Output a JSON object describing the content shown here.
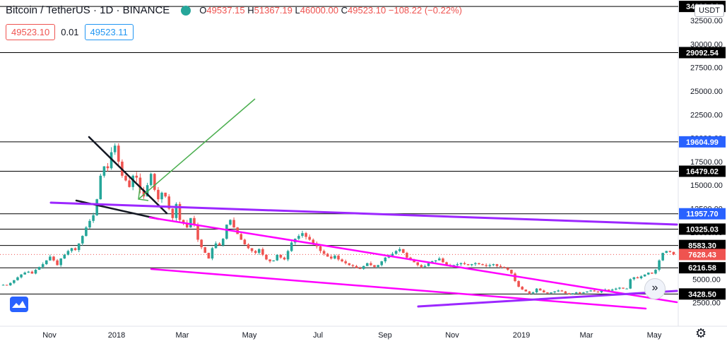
{
  "header": {
    "symbol": "Bitcoin / TetherUS · 1D · BINANCE",
    "ohlc": [
      {
        "k": "O",
        "v": "49537.15"
      },
      {
        "k": "H",
        "v": "51367.19"
      },
      {
        "k": "L",
        "v": "46000.00"
      },
      {
        "k": "C",
        "v": "49523.10"
      }
    ],
    "change": "−108.22 (−0.22%)"
  },
  "trade": {
    "sell": "49523.10",
    "spread": "0.01",
    "buy": "49523.11"
  },
  "currency": "USDT",
  "colors": {
    "up": "#26a69a",
    "down": "#ef5350",
    "magenta": "#ff00ff",
    "purple": "#9c27ff",
    "green": "#4caf50",
    "black": "#131722",
    "blue_label": "#2962ff"
  },
  "chart_data": {
    "type": "candlestick",
    "y_ticks": [
      "2500.00",
      "5000.00",
      "7500.00",
      "10000.00",
      "12500.00",
      "15000.00",
      "17500.00",
      "20000.00",
      "22500.00",
      "25000.00",
      "27500.00",
      "30000.00",
      "32500.00"
    ],
    "x_ticks": [
      "Nov",
      "2018",
      "Mar",
      "May",
      "Jul",
      "Sep",
      "Nov",
      "2019",
      "Mar",
      "May"
    ],
    "ylim": [
      0,
      35000
    ],
    "horizontal_levels": [
      {
        "value": 34000,
        "label": "34000.04"
      },
      {
        "value": 29092.54,
        "label": "29092.54"
      },
      {
        "value": 19604.99,
        "label": "19604.99",
        "highlight": true
      },
      {
        "value": 16479.02,
        "label": "16479.02"
      },
      {
        "value": 11957.7,
        "label": "11957.70",
        "highlight": true
      },
      {
        "value": 10325.03,
        "label": "10325.03"
      },
      {
        "value": 8583.3,
        "label": "8583.30"
      },
      {
        "value": 6216.58,
        "label": "6216.58"
      },
      {
        "value": 3428.5,
        "label": "3428.50"
      }
    ],
    "current_price": {
      "value": 7628.43,
      "label": "7628.43"
    },
    "closes": [
      4400,
      4350,
      4600,
      4900,
      5200,
      5500,
      5700,
      5800,
      5600,
      6000,
      6300,
      6600,
      7000,
      7400,
      7000,
      6500,
      7200,
      7600,
      8000,
      8300,
      8100,
      8800,
      9600,
      10500,
      11200,
      11800,
      13500,
      16000,
      17000,
      16800,
      18500,
      19200,
      17500,
      16000,
      15500,
      14800,
      16000,
      15800,
      14500,
      13800,
      15000,
      16200,
      14500,
      13500,
      14200,
      13800,
      12500,
      11500,
      13000,
      11300,
      11000,
      10500,
      11500,
      10800,
      9200,
      8400,
      7800,
      7200,
      8300,
      8800,
      8600,
      9300,
      10800,
      11300,
      10500,
      9800,
      9200,
      8700,
      8300,
      8000,
      7800,
      8200,
      7600,
      7100,
      6900,
      7000,
      7600,
      7300,
      7100,
      8000,
      8900,
      9300,
      9600,
      9900,
      9500,
      9200,
      8800,
      8500,
      8000,
      7700,
      7400,
      7200,
      7500,
      7100,
      6900,
      6700,
      6500,
      6400,
      6200,
      6100,
      6400,
      6700,
      6500,
      6300,
      6500,
      6900,
      7300,
      7500,
      7700,
      8000,
      8200,
      7800,
      7300,
      7100,
      6800,
      6500,
      6300,
      6400,
      6700,
      6900,
      7000,
      7200,
      6800,
      6500,
      6400,
      6500,
      6600,
      6700,
      6600,
      6500,
      6600,
      6700,
      6600,
      6500,
      6400,
      6500,
      6600,
      6400,
      6300,
      6200,
      6000,
      5600,
      4800,
      4200,
      3900,
      3700,
      3500,
      3600,
      4000,
      3800,
      3600,
      3500,
      3600,
      3700,
      3800,
      3700,
      3500,
      3400,
      3500,
      3600,
      3500,
      3600,
      3700,
      3800,
      3700,
      3600,
      3800,
      3900,
      3800,
      3900,
      4000,
      4100,
      4000,
      4000,
      5000,
      5200,
      5100,
      5300,
      5500,
      5700,
      5600,
      6000,
      7000,
      7800,
      8000,
      7900,
      7628
    ],
    "drawings": [
      {
        "type": "trend",
        "color": "black",
        "from": [
          "late Nov 2017",
          20500
        ],
        "to": [
          "Feb 2018",
          12700
        ]
      },
      {
        "type": "trend",
        "color": "black",
        "from": [
          "early Dec 2017",
          14100
        ],
        "to": [
          "Feb 2018",
          12000
        ]
      },
      {
        "type": "trend",
        "color": "purple",
        "from": [
          "early Dec 2017",
          14200
        ],
        "to": [
          "May 2019",
          11200
        ]
      },
      {
        "type": "trend",
        "color": "magenta",
        "from": [
          "Jan 2018",
          12000
        ],
        "to": [
          "May 2019",
          2800
        ]
      },
      {
        "type": "trend",
        "color": "magenta",
        "from": [
          "Feb 2018",
          6800
        ],
        "to": [
          "Apr 2019",
          2300
        ]
      },
      {
        "type": "trend",
        "color": "purple",
        "from": [
          "Sep 2018",
          2700
        ],
        "to": [
          "May 2019",
          4100
        ]
      },
      {
        "type": "arrow",
        "color": "green",
        "from": [
          "May 2018",
          24500
        ],
        "to": [
          "Jan 2018",
          14200
        ]
      }
    ]
  }
}
